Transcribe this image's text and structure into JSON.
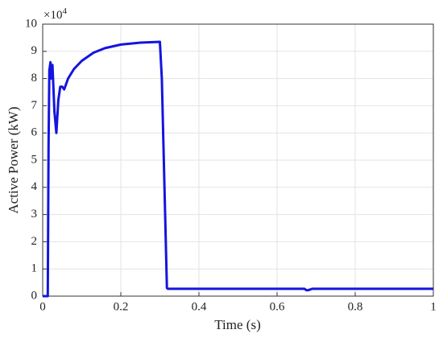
{
  "chart_data": {
    "type": "line",
    "xlabel": "Time (s)",
    "ylabel": "Active Power (kW)",
    "y_multiplier": "×10",
    "y_multiplier_exponent": "4",
    "xlim": [
      0,
      1
    ],
    "ylim": [
      0,
      10
    ],
    "xticks": [
      0,
      0.2,
      0.4,
      0.6,
      0.8,
      1
    ],
    "yticks": [
      0,
      1,
      2,
      3,
      4,
      5,
      6,
      7,
      8,
      9,
      10
    ],
    "grid": true,
    "series": [
      {
        "color": "#1414e0",
        "x": [
          0,
          0.013,
          0.015,
          0.017,
          0.02,
          0.022,
          0.025,
          0.03,
          0.035,
          0.04,
          0.045,
          0.05,
          0.055,
          0.06,
          0.065,
          0.08,
          0.1,
          0.13,
          0.16,
          0.2,
          0.25,
          0.3,
          0.305,
          0.318,
          0.32,
          0.4,
          0.5,
          0.6,
          0.67,
          0.675,
          0.68,
          0.69,
          0.7,
          0.8,
          0.9,
          1
        ],
        "values": [
          0,
          0,
          5.5,
          8.3,
          8.6,
          8.0,
          8.5,
          6.8,
          6.0,
          7.2,
          7.7,
          7.7,
          7.6,
          7.8,
          8.0,
          8.35,
          8.65,
          8.95,
          9.12,
          9.25,
          9.32,
          9.35,
          8.0,
          0.3,
          0.27,
          0.27,
          0.27,
          0.27,
          0.27,
          0.22,
          0.22,
          0.27,
          0.27,
          0.27,
          0.27,
          0.27
        ]
      }
    ]
  }
}
